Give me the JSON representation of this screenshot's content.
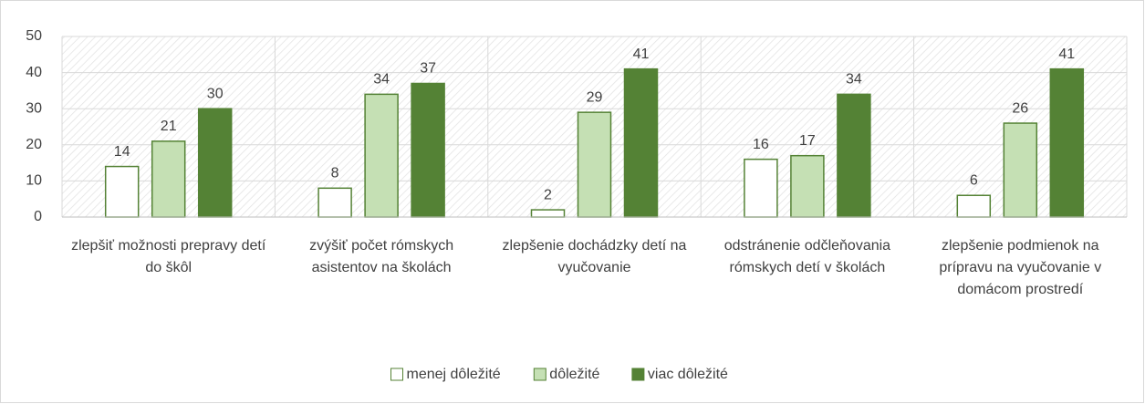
{
  "chart_data": {
    "type": "bar",
    "categories": [
      "zlepšiť  možnosti prepravy detí do škôl",
      "zvýšiť počet rómskych asistentov na školách",
      "zlepšenie dochádzky detí na vyučovanie",
      "odstránenie odčleňovania rómskych detí v školách",
      "zlepšenie podmienok na prípravu na vyučovanie v domácom prostredí"
    ],
    "series": [
      {
        "name": "menej dôležité",
        "color": "#ffffff",
        "values": [
          14,
          8,
          2,
          16,
          6
        ]
      },
      {
        "name": "dôležité",
        "color": "#c5e0b4",
        "values": [
          21,
          34,
          29,
          17,
          26
        ]
      },
      {
        "name": "viac dôležité",
        "color": "#548235",
        "values": [
          30,
          37,
          41,
          34,
          41
        ]
      }
    ],
    "ylim": [
      0,
      50
    ],
    "yticks": [
      0,
      10,
      20,
      30,
      40,
      50
    ],
    "grid": true,
    "legend": "bottom"
  }
}
